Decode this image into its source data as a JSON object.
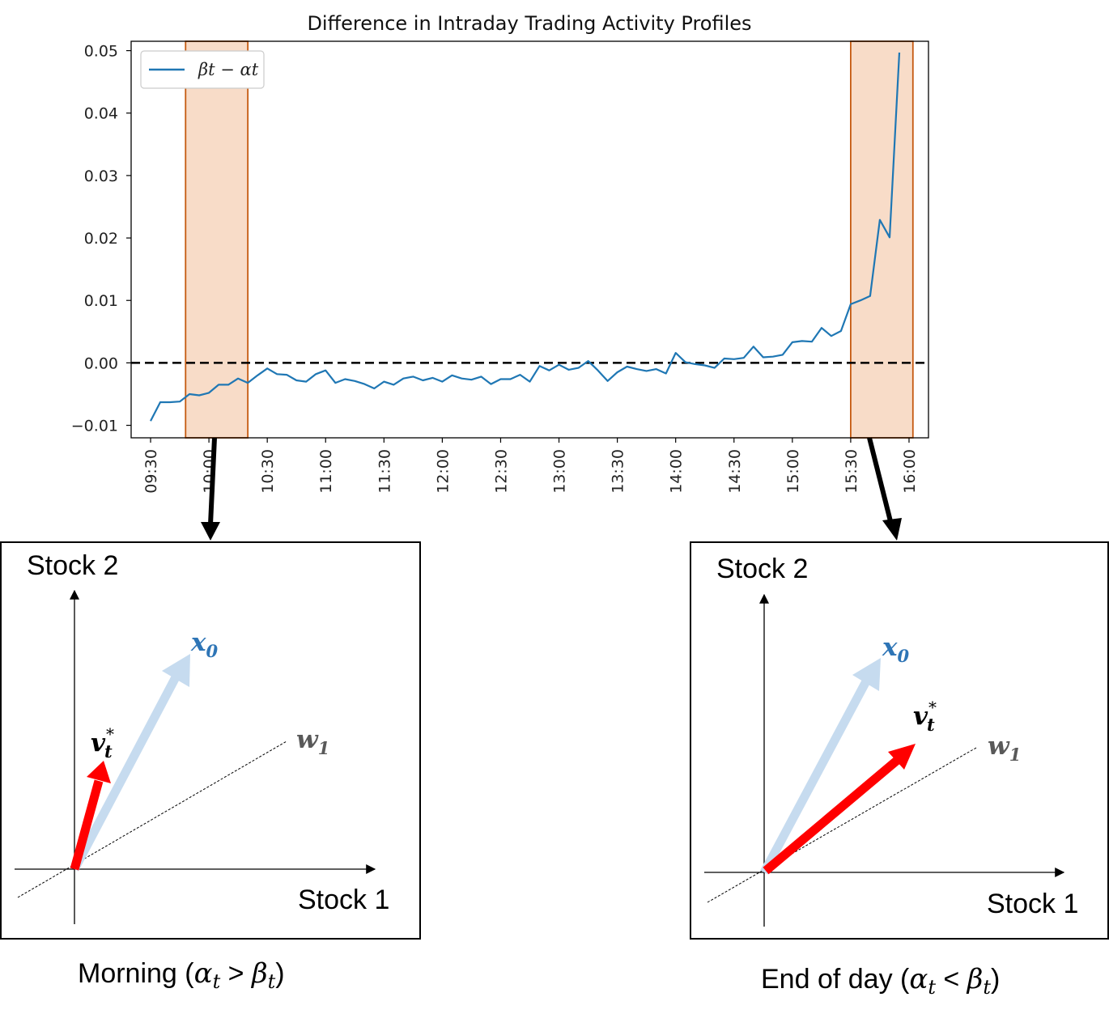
{
  "chart_data": {
    "type": "line",
    "title": "Difference in Intraday Trading Activity Profiles",
    "xlabel": "",
    "ylabel": "",
    "x_ticks": [
      "09:30",
      "10:00",
      "10:30",
      "11:00",
      "11:30",
      "12:00",
      "12:30",
      "13:00",
      "13:30",
      "14:00",
      "14:30",
      "15:00",
      "15:30",
      "16:00"
    ],
    "y_ticks": [
      "0.05",
      "0.04",
      "0.03",
      "0.02",
      "0.01",
      "0.00",
      "−0.01"
    ],
    "ylim": [
      -0.012,
      0.0515
    ],
    "xlim_minutes": [
      -10,
      400
    ],
    "grid": false,
    "legend": {
      "position": "top-left",
      "entries": [
        "βt − αt"
      ]
    },
    "reference_line": {
      "y": 0.0,
      "style": "dashed",
      "color": "#000000"
    },
    "highlight_ranges": [
      {
        "x0": "09:48",
        "x1": "10:20"
      },
      {
        "x0": "15:30",
        "x1": "16:02"
      }
    ],
    "series": [
      {
        "name": "βt − αt",
        "color": "#1f77b4",
        "points": [
          [
            0,
            -0.0093
          ],
          [
            5,
            -0.0063
          ],
          [
            10,
            -0.0063
          ],
          [
            15,
            -0.0062
          ],
          [
            20,
            -0.005
          ],
          [
            25,
            -0.0052
          ],
          [
            30,
            -0.0048
          ],
          [
            35,
            -0.0035
          ],
          [
            40,
            -0.0035
          ],
          [
            45,
            -0.0025
          ],
          [
            50,
            -0.0032
          ],
          [
            55,
            -0.002
          ],
          [
            60,
            -0.0009
          ],
          [
            65,
            -0.0018
          ],
          [
            70,
            -0.0019
          ],
          [
            75,
            -0.0028
          ],
          [
            80,
            -0.003
          ],
          [
            85,
            -0.0018
          ],
          [
            90,
            -0.0012
          ],
          [
            95,
            -0.0032
          ],
          [
            100,
            -0.0026
          ],
          [
            105,
            -0.0029
          ],
          [
            110,
            -0.0034
          ],
          [
            115,
            -0.0041
          ],
          [
            120,
            -0.003
          ],
          [
            125,
            -0.0035
          ],
          [
            130,
            -0.0025
          ],
          [
            135,
            -0.0022
          ],
          [
            140,
            -0.0028
          ],
          [
            145,
            -0.0024
          ],
          [
            150,
            -0.003
          ],
          [
            155,
            -0.002
          ],
          [
            160,
            -0.0025
          ],
          [
            165,
            -0.0027
          ],
          [
            170,
            -0.0022
          ],
          [
            175,
            -0.0034
          ],
          [
            180,
            -0.0026
          ],
          [
            185,
            -0.0026
          ],
          [
            190,
            -0.0019
          ],
          [
            195,
            -0.003
          ],
          [
            200,
            -0.0005
          ],
          [
            205,
            -0.0012
          ],
          [
            210,
            -0.0003
          ],
          [
            215,
            -0.0011
          ],
          [
            220,
            -0.0008
          ],
          [
            225,
            0.0003
          ],
          [
            230,
            -0.0012
          ],
          [
            235,
            -0.0029
          ],
          [
            240,
            -0.0015
          ],
          [
            245,
            -0.0006
          ],
          [
            250,
            -0.001
          ],
          [
            255,
            -0.0013
          ],
          [
            260,
            -0.001
          ],
          [
            265,
            -0.0017
          ],
          [
            270,
            0.0016
          ],
          [
            275,
            0.0001
          ],
          [
            280,
            -0.0002
          ],
          [
            285,
            -0.0004
          ],
          [
            290,
            -0.0008
          ],
          [
            295,
            0.0007
          ],
          [
            300,
            0.0006
          ],
          [
            305,
            0.0008
          ],
          [
            310,
            0.0026
          ],
          [
            315,
            0.0009
          ],
          [
            320,
            0.001
          ],
          [
            325,
            0.0013
          ],
          [
            330,
            0.0033
          ],
          [
            335,
            0.0035
          ],
          [
            340,
            0.0034
          ],
          [
            345,
            0.0056
          ],
          [
            350,
            0.0043
          ],
          [
            355,
            0.0051
          ],
          [
            360,
            0.0094
          ],
          [
            365,
            0.01
          ],
          [
            370,
            0.0107
          ],
          [
            375,
            0.0229
          ],
          [
            380,
            0.0201
          ],
          [
            385,
            0.0497
          ]
        ]
      }
    ]
  },
  "panels": {
    "left": {
      "y_axis_label": "Stock 2",
      "x_axis_label": "Stock 1",
      "x0_label": "x",
      "x0_subscript": "0",
      "v_label": "v",
      "v_subscript": "t",
      "v_superscript": "*",
      "w_label": "w",
      "w_subscript": "1",
      "caption_prefix": "Morning (",
      "caption_a": "α",
      "caption_a_sub": "t",
      "caption_op": " > ",
      "caption_b": "β",
      "caption_b_sub": "t",
      "caption_suffix": ")"
    },
    "right": {
      "y_axis_label": "Stock 2",
      "x_axis_label": "Stock 1",
      "x0_label": "x",
      "x0_subscript": "0",
      "v_label": "v",
      "v_subscript": "t",
      "v_superscript": "*",
      "w_label": "w",
      "w_subscript": "1",
      "caption_prefix": "End of day (",
      "caption_a": "α",
      "caption_a_sub": "t",
      "caption_op": " < ",
      "caption_b": "β",
      "caption_b_sub": "t",
      "caption_suffix": ")"
    }
  },
  "colors": {
    "series_line": "#1f77b4",
    "highlight_fill": "#f8dcc8",
    "highlight_edge": "#c55a11",
    "x0_arrow": "#c6dbef",
    "x0_label": "#2e75b6",
    "v_arrow": "#ff0000",
    "w_label": "#595959"
  }
}
